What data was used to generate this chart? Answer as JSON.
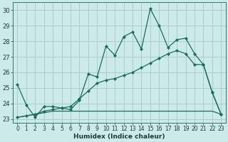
{
  "xlabel": "Humidex (Indice chaleur)",
  "bg_color": "#cceaea",
  "grid_color": "#aacccc",
  "line_color": "#1a6b5a",
  "xlim": [
    -0.5,
    23.5
  ],
  "ylim": [
    22.75,
    30.5
  ],
  "yticks": [
    23,
    24,
    25,
    26,
    27,
    28,
    29,
    30
  ],
  "xticks": [
    0,
    1,
    2,
    3,
    4,
    5,
    6,
    7,
    8,
    9,
    10,
    11,
    12,
    13,
    14,
    15,
    16,
    17,
    18,
    19,
    20,
    21,
    22,
    23
  ],
  "series1_x": [
    0,
    1,
    2,
    3,
    4,
    5,
    6,
    7,
    8,
    9,
    10,
    11,
    12,
    13,
    14,
    15,
    16,
    17,
    18,
    19,
    20,
    21,
    22,
    23
  ],
  "series1_y": [
    25.2,
    23.9,
    23.1,
    23.8,
    23.8,
    23.7,
    23.6,
    24.2,
    25.9,
    25.7,
    27.7,
    27.1,
    28.3,
    28.6,
    27.5,
    30.1,
    29.0,
    27.6,
    28.1,
    28.2,
    27.2,
    26.5,
    24.7,
    23.3
  ],
  "series2_x": [
    0,
    1,
    2,
    3,
    4,
    5,
    6,
    7,
    8,
    9,
    10,
    11,
    12,
    13,
    14,
    15,
    16,
    17,
    18,
    19,
    20,
    21,
    22,
    23
  ],
  "series2_y": [
    23.1,
    23.2,
    23.3,
    23.5,
    23.6,
    23.7,
    23.8,
    24.3,
    24.8,
    25.3,
    25.5,
    25.6,
    25.8,
    26.0,
    26.3,
    26.6,
    26.9,
    27.2,
    27.4,
    27.2,
    26.5,
    26.5,
    24.7,
    23.3
  ],
  "series3_x": [
    0,
    1,
    2,
    3,
    4,
    5,
    6,
    7,
    8,
    9,
    10,
    11,
    12,
    13,
    14,
    15,
    16,
    17,
    18,
    19,
    20,
    21,
    22,
    23
  ],
  "series3_y": [
    23.1,
    23.2,
    23.3,
    23.4,
    23.5,
    23.5,
    23.5,
    23.5,
    23.5,
    23.5,
    23.5,
    23.5,
    23.5,
    23.5,
    23.5,
    23.5,
    23.5,
    23.5,
    23.5,
    23.5,
    23.5,
    23.5,
    23.5,
    23.3
  ]
}
